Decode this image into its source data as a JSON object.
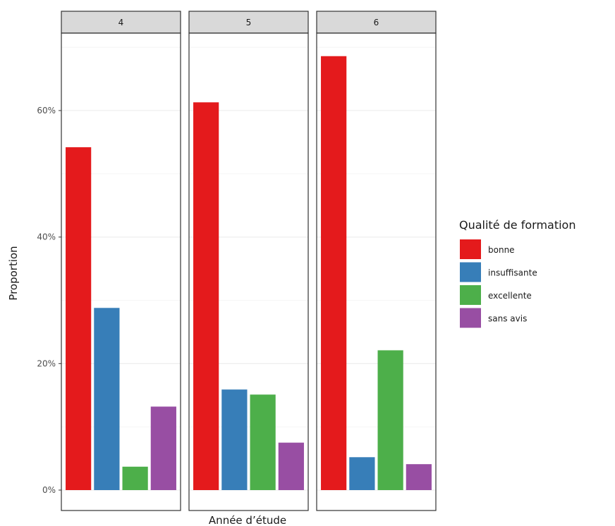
{
  "chart_data": {
    "type": "bar",
    "facet_label": "",
    "facets": [
      "4",
      "5",
      "6"
    ],
    "categories": [
      "bonne",
      "insuffisante",
      "excellente",
      "sans avis"
    ],
    "series": [
      {
        "facet": "4",
        "values": [
          0.542,
          0.288,
          0.037,
          0.132
        ]
      },
      {
        "facet": "5",
        "values": [
          0.613,
          0.159,
          0.151,
          0.075
        ]
      },
      {
        "facet": "6",
        "values": [
          0.686,
          0.052,
          0.221,
          0.041
        ]
      }
    ],
    "xlabel": "Année d’étude",
    "ylabel": "Proportion",
    "ylim": [
      0,
      0.72
    ],
    "yticks": [
      0,
      0.2,
      0.4,
      0.6
    ],
    "ytick_labels": [
      "0%",
      "20%",
      "40%",
      "60%"
    ],
    "grid": true,
    "legend": {
      "title": "Qualité de formation",
      "position": "right",
      "entries": [
        "bonne",
        "insuffisante",
        "excellente",
        "sans avis"
      ]
    },
    "colors": [
      "#e41a1c",
      "#377eb8",
      "#4daf4a",
      "#984ea3"
    ]
  }
}
